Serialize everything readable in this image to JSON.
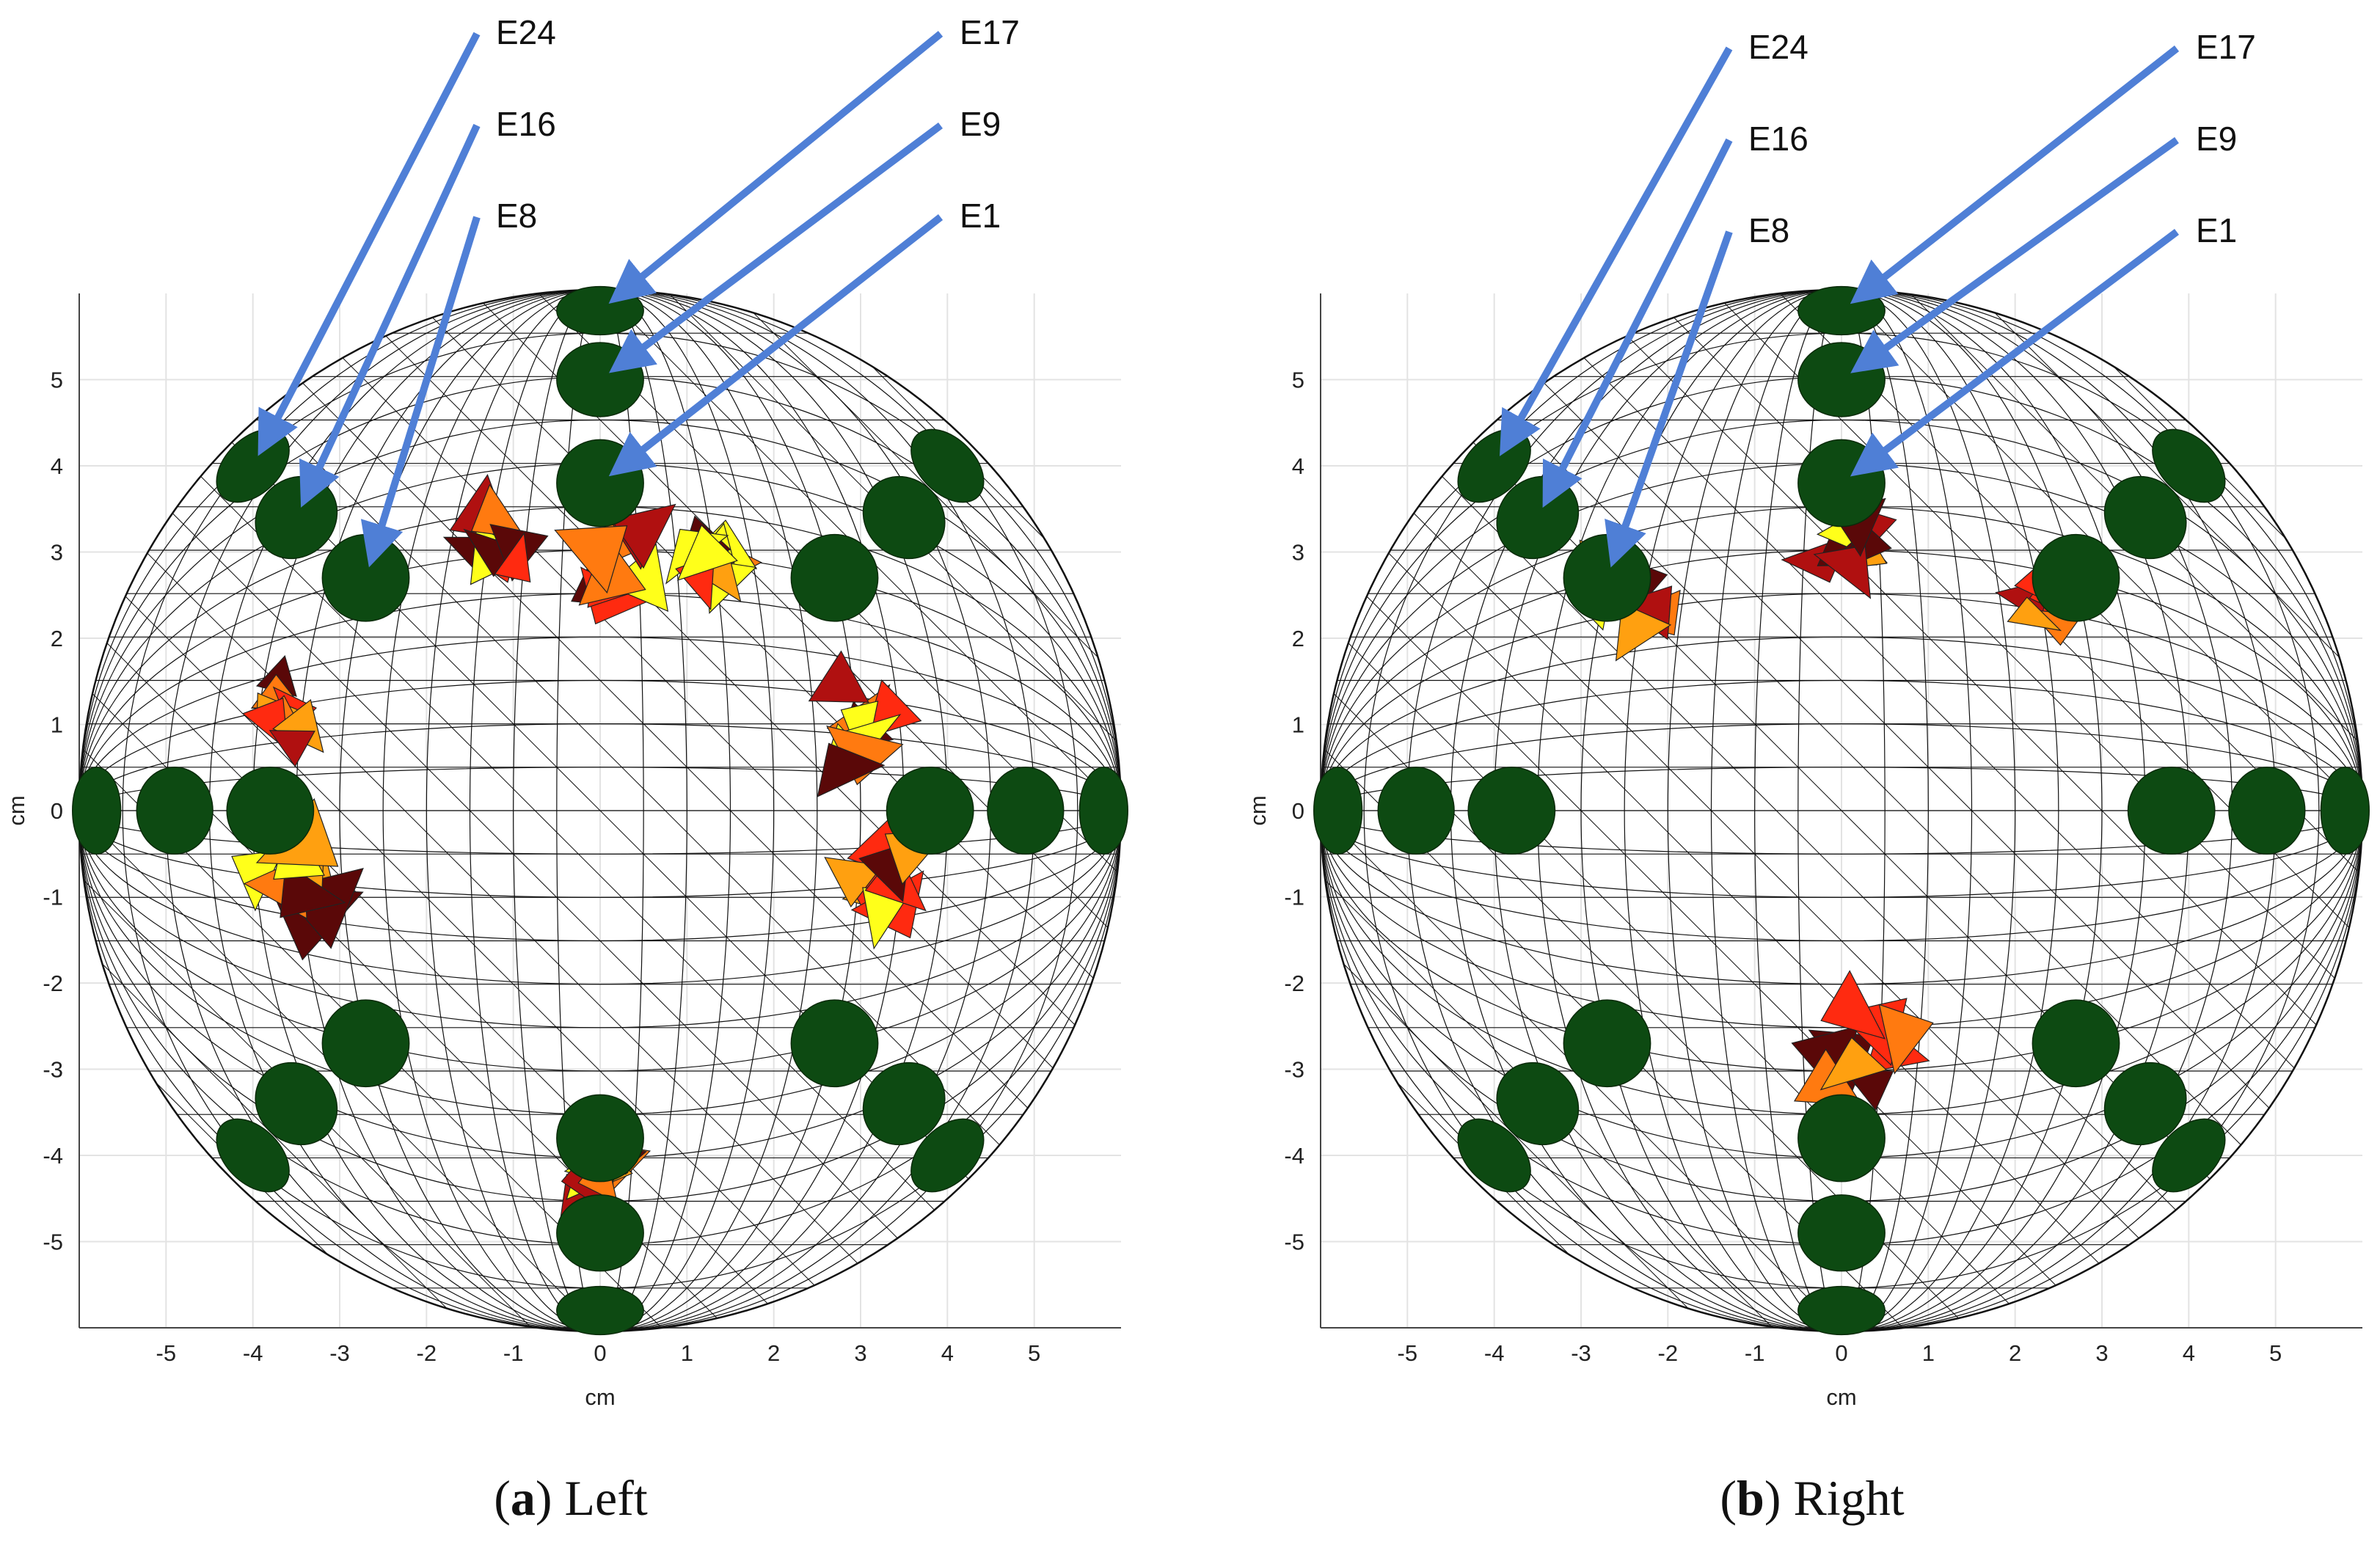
{
  "figure": {
    "panels": [
      {
        "caption_letter": "a",
        "caption_text": "Left"
      },
      {
        "caption_letter": "b",
        "caption_text": "Right"
      }
    ]
  },
  "chart_data": [
    {
      "type": "scatter",
      "title": "",
      "xlabel": "cm",
      "ylabel": "cm",
      "xlim": [
        -6,
        6
      ],
      "ylim": [
        -6,
        6
      ],
      "xticks": [
        -5,
        -4,
        -3,
        -2,
        -1,
        0,
        1,
        2,
        3,
        4,
        5
      ],
      "yticks": [
        5,
        4,
        3,
        2,
        1,
        0,
        -1,
        -2,
        -3,
        -4,
        -5
      ],
      "grid": true,
      "sphere_radius_cm": 6,
      "electrode_color": "#0d4a12",
      "arrow_color": "#4f7fd6",
      "electrodes": [
        {
          "x": 0,
          "y": 5.8
        },
        {
          "x": 0,
          "y": 5.0
        },
        {
          "x": 0,
          "y": 3.8
        },
        {
          "x": -4.0,
          "y": 4.0
        },
        {
          "x": -3.5,
          "y": 3.4
        },
        {
          "x": -2.7,
          "y": 2.7
        },
        {
          "x": 2.7,
          "y": 2.7
        },
        {
          "x": 3.5,
          "y": 3.4
        },
        {
          "x": 4.0,
          "y": 4.0
        },
        {
          "x": -5.8,
          "y": 0
        },
        {
          "x": -4.9,
          "y": 0
        },
        {
          "x": -3.8,
          "y": 0
        },
        {
          "x": 3.8,
          "y": 0
        },
        {
          "x": 4.9,
          "y": 0
        },
        {
          "x": 5.8,
          "y": 0
        },
        {
          "x": -2.7,
          "y": -2.7
        },
        {
          "x": -3.5,
          "y": -3.4
        },
        {
          "x": -4.0,
          "y": -4.0
        },
        {
          "x": 2.7,
          "y": -2.7
        },
        {
          "x": 3.5,
          "y": -3.4
        },
        {
          "x": 4.0,
          "y": -4.0
        },
        {
          "x": 0,
          "y": -3.8
        },
        {
          "x": 0,
          "y": -4.9
        },
        {
          "x": 0,
          "y": -5.8
        }
      ],
      "arrows": [
        {
          "label": "E24",
          "target": {
            "x": -4.0,
            "y": 4.0
          }
        },
        {
          "label": "E16",
          "target": {
            "x": -3.5,
            "y": 3.4
          }
        },
        {
          "label": "E8",
          "target": {
            "x": -2.7,
            "y": 2.7
          }
        },
        {
          "label": "E17",
          "target": {
            "x": 0,
            "y": 5.8
          }
        },
        {
          "label": "E9",
          "target": {
            "x": 0,
            "y": 5.0
          }
        },
        {
          "label": "E1",
          "target": {
            "x": 0,
            "y": 3.8
          }
        }
      ],
      "activation_regions": [
        {
          "x": 0.2,
          "y": 3.0
        },
        {
          "x": -1.2,
          "y": 3.0
        },
        {
          "x": 1.4,
          "y": 2.8
        },
        {
          "x": -3.7,
          "y": 1.1
        },
        {
          "x": -3.4,
          "y": -0.8
        },
        {
          "x": 3.0,
          "y": 1.0
        },
        {
          "x": 3.2,
          "y": -0.8
        },
        {
          "x": 0,
          "y": -4.2
        }
      ]
    },
    {
      "type": "scatter",
      "title": "",
      "xlabel": "cm",
      "ylabel": "cm",
      "xlim": [
        -6,
        6
      ],
      "ylim": [
        -6,
        6
      ],
      "xticks": [
        -5,
        -4,
        -3,
        -2,
        -1,
        0,
        1,
        2,
        3,
        4,
        5
      ],
      "yticks": [
        5,
        4,
        3,
        2,
        1,
        0,
        -1,
        -2,
        -3,
        -4,
        -5
      ],
      "grid": true,
      "sphere_radius_cm": 6,
      "electrode_color": "#0d4a12",
      "arrow_color": "#4f7fd6",
      "electrodes": [
        {
          "x": 0,
          "y": 5.8
        },
        {
          "x": 0,
          "y": 5.0
        },
        {
          "x": 0,
          "y": 3.8
        },
        {
          "x": -4.0,
          "y": 4.0
        },
        {
          "x": -3.5,
          "y": 3.4
        },
        {
          "x": -2.7,
          "y": 2.7
        },
        {
          "x": 2.7,
          "y": 2.7
        },
        {
          "x": 3.5,
          "y": 3.4
        },
        {
          "x": 4.0,
          "y": 4.0
        },
        {
          "x": -5.8,
          "y": 0
        },
        {
          "x": -4.9,
          "y": 0
        },
        {
          "x": -3.8,
          "y": 0
        },
        {
          "x": 3.8,
          "y": 0
        },
        {
          "x": 4.9,
          "y": 0
        },
        {
          "x": 5.8,
          "y": 0
        },
        {
          "x": -2.7,
          "y": -2.7
        },
        {
          "x": -3.5,
          "y": -3.4
        },
        {
          "x": -4.0,
          "y": -4.0
        },
        {
          "x": 2.7,
          "y": -2.7
        },
        {
          "x": 3.5,
          "y": -3.4
        },
        {
          "x": 4.0,
          "y": -4.0
        },
        {
          "x": 0,
          "y": -3.8
        },
        {
          "x": 0,
          "y": -4.9
        },
        {
          "x": 0,
          "y": -5.8
        }
      ],
      "arrows": [
        {
          "label": "E24",
          "target": {
            "x": -4.0,
            "y": 4.0
          }
        },
        {
          "label": "E16",
          "target": {
            "x": -3.5,
            "y": 3.4
          }
        },
        {
          "label": "E8",
          "target": {
            "x": -2.7,
            "y": 2.7
          }
        },
        {
          "label": "E17",
          "target": {
            "x": 0,
            "y": 5.8
          }
        },
        {
          "label": "E9",
          "target": {
            "x": 0,
            "y": 5.0
          }
        },
        {
          "label": "E1",
          "target": {
            "x": 0,
            "y": 3.8
          }
        }
      ],
      "activation_regions": [
        {
          "x": -2.4,
          "y": 2.5
        },
        {
          "x": 0,
          "y": 3.0
        },
        {
          "x": 2.4,
          "y": 2.5
        },
        {
          "x": 0.2,
          "y": -2.8
        }
      ]
    }
  ]
}
